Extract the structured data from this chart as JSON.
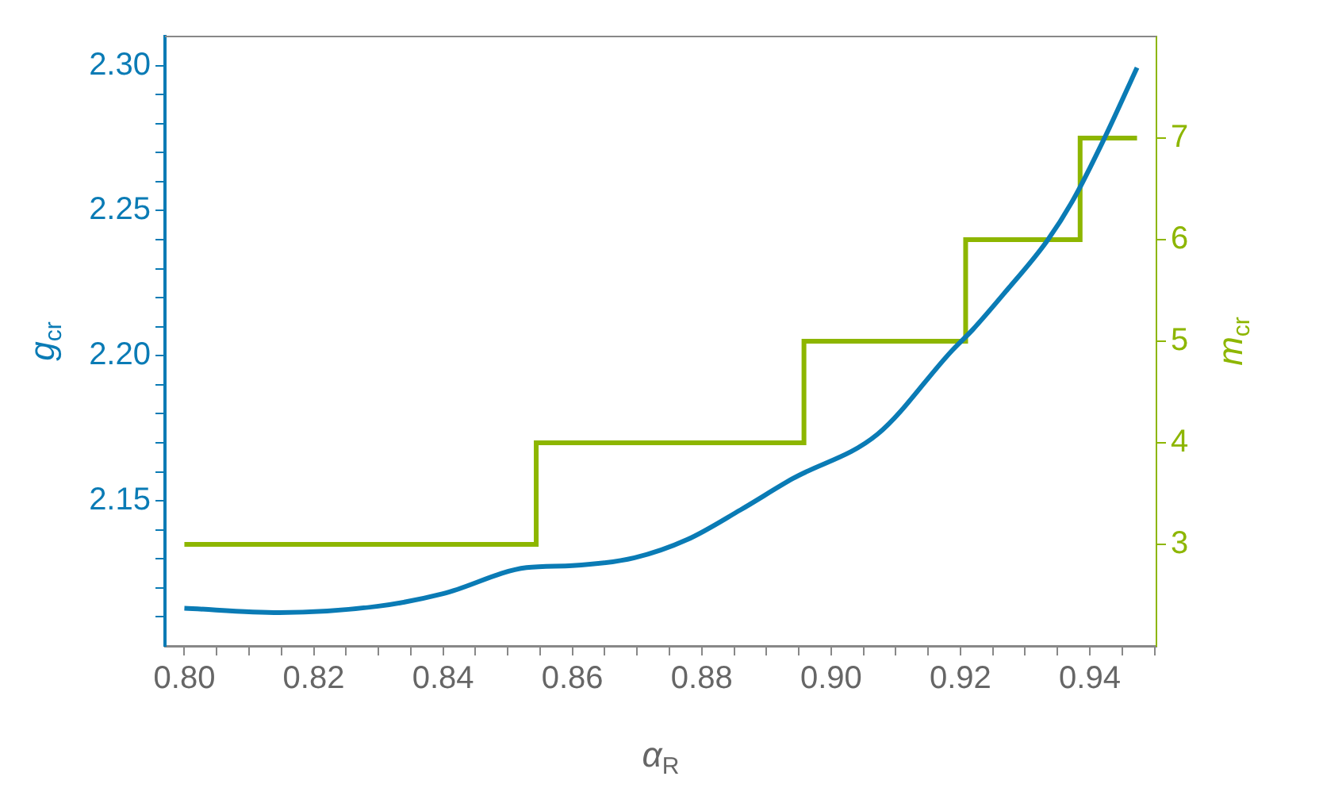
{
  "chart_data": {
    "type": "line",
    "xlabel": "α$_{R}$",
    "ylabel": "g$_{cr}$",
    "y2label": "m$_{cr}$",
    "marker": "none",
    "grid": false,
    "legend": false,
    "xlim": [
      0.797,
      0.9503
    ],
    "ylim": [
      2.1,
      2.31
    ],
    "y2lim": [
      2,
      8
    ],
    "xticks": [
      {
        "value": 0.8,
        "label": "0.80"
      },
      {
        "value": 0.805,
        "label": null
      },
      {
        "value": 0.81,
        "label": null
      },
      {
        "value": 0.815,
        "label": null
      },
      {
        "value": 0.82,
        "label": "0.82"
      },
      {
        "value": 0.825,
        "label": null
      },
      {
        "value": 0.83,
        "label": null
      },
      {
        "value": 0.835,
        "label": null
      },
      {
        "value": 0.84,
        "label": "0.84"
      },
      {
        "value": 0.845,
        "label": null
      },
      {
        "value": 0.85,
        "label": null
      },
      {
        "value": 0.855,
        "label": null
      },
      {
        "value": 0.86,
        "label": "0.86"
      },
      {
        "value": 0.865,
        "label": null
      },
      {
        "value": 0.87,
        "label": null
      },
      {
        "value": 0.875,
        "label": null
      },
      {
        "value": 0.88,
        "label": "0.88"
      },
      {
        "value": 0.885,
        "label": null
      },
      {
        "value": 0.89,
        "label": null
      },
      {
        "value": 0.895,
        "label": null
      },
      {
        "value": 0.9,
        "label": "0.90"
      },
      {
        "value": 0.905,
        "label": null
      },
      {
        "value": 0.91,
        "label": null
      },
      {
        "value": 0.915,
        "label": null
      },
      {
        "value": 0.92,
        "label": "0.92"
      },
      {
        "value": 0.925,
        "label": null
      },
      {
        "value": 0.93,
        "label": null
      },
      {
        "value": 0.935,
        "label": null
      },
      {
        "value": 0.94,
        "label": "0.94"
      },
      {
        "value": 0.945,
        "label": null
      },
      {
        "value": 0.95,
        "label": null
      }
    ],
    "yticks": [
      {
        "value": 2.11,
        "label": null
      },
      {
        "value": 2.12,
        "label": null
      },
      {
        "value": 2.13,
        "label": null
      },
      {
        "value": 2.14,
        "label": null
      },
      {
        "value": 2.15,
        "label": "2.15"
      },
      {
        "value": 2.16,
        "label": null
      },
      {
        "value": 2.17,
        "label": null
      },
      {
        "value": 2.18,
        "label": null
      },
      {
        "value": 2.19,
        "label": null
      },
      {
        "value": 2.2,
        "label": "2.20"
      },
      {
        "value": 2.21,
        "label": null
      },
      {
        "value": 2.22,
        "label": null
      },
      {
        "value": 2.23,
        "label": null
      },
      {
        "value": 2.24,
        "label": null
      },
      {
        "value": 2.25,
        "label": "2.25"
      },
      {
        "value": 2.26,
        "label": null
      },
      {
        "value": 2.27,
        "label": null
      },
      {
        "value": 2.28,
        "label": null
      },
      {
        "value": 2.29,
        "label": null
      },
      {
        "value": 2.3,
        "label": "2.30"
      }
    ],
    "y2ticks": [
      3,
      4,
      5,
      6,
      7
    ],
    "series": [
      {
        "type": "line",
        "axis": "y",
        "color": "#0a7bb5",
        "x": [
          0.8,
          0.8147,
          0.83,
          0.84,
          0.8529,
          0.86,
          0.8696,
          0.8778,
          0.886,
          0.8941,
          0.9072,
          0.9187,
          0.9219,
          0.9268,
          0.9334,
          0.9375,
          0.9424,
          0.9473
        ],
        "values": [
          2.113,
          2.1115,
          2.1137,
          2.118,
          2.127,
          2.1277,
          2.1304,
          2.1367,
          2.1469,
          2.1577,
          2.173,
          2.2018,
          2.209,
          2.2216,
          2.2396,
          2.254,
          2.2756,
          2.2993
        ]
      },
      {
        "type": "step",
        "axis": "y2",
        "color": "#8db600",
        "x": [
          0.8,
          0.8544,
          0.8958,
          0.9208,
          0.9385,
          0.9473
        ],
        "values": [
          3,
          4,
          5,
          6,
          7,
          7
        ]
      }
    ]
  }
}
